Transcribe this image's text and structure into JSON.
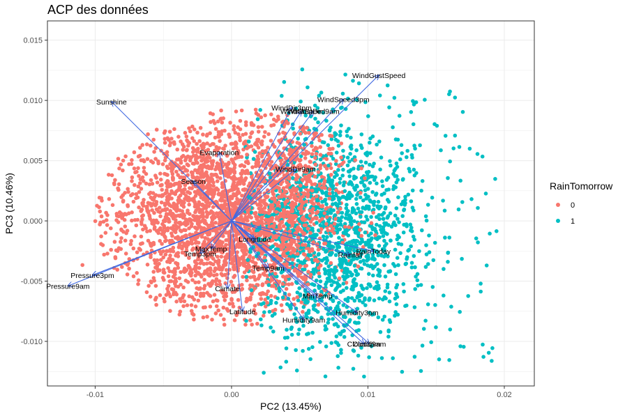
{
  "chart_data": {
    "type": "scatter",
    "subtype": "pca-biplot",
    "title": "ACP des données",
    "xlabel": "PC2 (13.45%)",
    "ylabel": "PC3 (10.46%)",
    "xlim": [
      -0.0135,
      0.0222
    ],
    "ylim": [
      -0.0137,
      0.0166
    ],
    "xticks": [
      -0.01,
      0.0,
      0.01,
      0.02
    ],
    "xtick_labels": [
      "-0.01",
      "0.00",
      "0.01",
      "0.02"
    ],
    "yticks": [
      -0.01,
      -0.005,
      0.0,
      0.005,
      0.01,
      0.015
    ],
    "ytick_labels": [
      "-0.010",
      "-0.005",
      "0.000",
      "0.005",
      "0.010",
      "0.015"
    ],
    "grid": true,
    "legend": {
      "title": "RainTomorrow",
      "placement": "right",
      "entries": [
        {
          "label": "0",
          "color": "#F8766D"
        },
        {
          "label": "1",
          "color": "#00BFC4"
        }
      ]
    },
    "arrow_color": "#4169E1",
    "loadings": [
      {
        "name": "Sunshine",
        "x": -0.0088,
        "y": 0.0099
      },
      {
        "name": "Evaporation",
        "x": -0.0009,
        "y": 0.0057
      },
      {
        "name": "Season",
        "x": -0.0028,
        "y": 0.0033
      },
      {
        "name": "WindDir3pm",
        "x": 0.0044,
        "y": 0.0094
      },
      {
        "name": "WindGustDir",
        "x": 0.0051,
        "y": 0.0091
      },
      {
        "name": "WindSpeed9am",
        "x": 0.006,
        "y": 0.0091
      },
      {
        "name": "WindSpeed3pm",
        "x": 0.0082,
        "y": 0.0101
      },
      {
        "name": "WindGustSpeed",
        "x": 0.0108,
        "y": 0.0121
      },
      {
        "name": "WindDir9am",
        "x": 0.0047,
        "y": 0.0043
      },
      {
        "name": "Longitude",
        "x": 0.0017,
        "y": -0.0015
      },
      {
        "name": "RainToday",
        "x": 0.0104,
        "y": -0.0025
      },
      {
        "name": "Rainfall",
        "x": 0.0087,
        "y": -0.0028
      },
      {
        "name": "MaxTemp",
        "x": -0.0015,
        "y": -0.0023
      },
      {
        "name": "Temp3pm",
        "x": -0.0023,
        "y": -0.0027
      },
      {
        "name": "Temp9am",
        "x": 0.0027,
        "y": -0.0039
      },
      {
        "name": "Pressure3pm",
        "x": -0.0102,
        "y": -0.0045
      },
      {
        "name": "Pressure9am",
        "x": -0.012,
        "y": -0.0054
      },
      {
        "name": "Climate",
        "x": -0.0003,
        "y": -0.0056
      },
      {
        "name": "MinTemp",
        "x": 0.0063,
        "y": -0.0062
      },
      {
        "name": "Latitude",
        "x": 0.0008,
        "y": -0.0075
      },
      {
        "name": "Humidity3pm",
        "x": 0.0092,
        "y": -0.0076
      },
      {
        "name": "Humidity9am",
        "x": 0.0053,
        "y": -0.0082
      },
      {
        "name": "Cloud3pm",
        "x": 0.0097,
        "y": -0.0102
      },
      {
        "name": "Cloud9am",
        "x": 0.0101,
        "y": -0.0102
      }
    ]
  }
}
